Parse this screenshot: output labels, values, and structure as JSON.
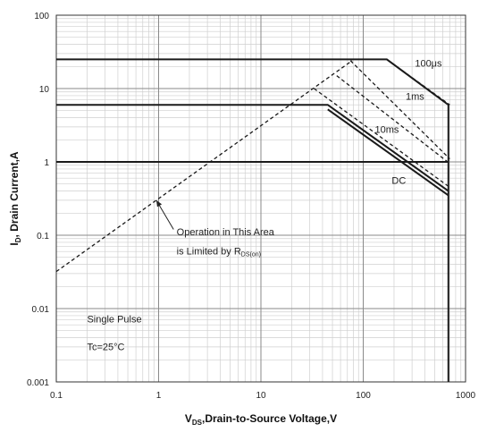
{
  "chart_data": {
    "type": "line",
    "title": "",
    "xlabel": {
      "main": "V",
      "sub": "DS",
      "rest": ",Drain-to-Source Voltage,V"
    },
    "ylabel": {
      "main": "I",
      "sub": "D",
      "rest": ", Drain Current,A"
    },
    "x_scale": "log",
    "y_scale": "log",
    "xlim": [
      0.1,
      1000
    ],
    "ylim": [
      0.001,
      100
    ],
    "grid": true,
    "x_ticks": [
      {
        "value": 0.1,
        "label": "0.1"
      },
      {
        "value": 1,
        "label": "1"
      },
      {
        "value": 10,
        "label": "10"
      },
      {
        "value": 100,
        "label": "100"
      },
      {
        "value": 1000,
        "label": "1000"
      }
    ],
    "y_ticks": [
      {
        "value": 0.001,
        "label": "0.001"
      },
      {
        "value": 0.01,
        "label": "0.01"
      },
      {
        "value": 0.1,
        "label": "0.1"
      },
      {
        "value": 1,
        "label": "1"
      },
      {
        "value": 10,
        "label": "10"
      },
      {
        "value": 100,
        "label": "100"
      }
    ],
    "series": [
      {
        "name": "100μs",
        "style": "solid",
        "points": [
          [
            0.1,
            25
          ],
          [
            170,
            25
          ],
          [
            680,
            6
          ],
          [
            680,
            0.001
          ]
        ]
      },
      {
        "name": "100μs",
        "style": "dashed",
        "points": [
          [
            170,
            25
          ],
          [
            700,
            6
          ]
        ]
      },
      {
        "name": "1ms",
        "style": "dashed",
        "points": [
          [
            75,
            24
          ],
          [
            700,
            1.1
          ]
        ]
      },
      {
        "name": "10ms",
        "style": "dashed",
        "points": [
          [
            0.1,
            0.032
          ],
          [
            78,
            24
          ]
        ]
      },
      {
        "name": "10ms",
        "style": "dashed",
        "points": [
          [
            55,
            15
          ],
          [
            700,
            0.95
          ]
        ]
      },
      {
        "name": "10ms",
        "style": "dashed",
        "points": [
          [
            33,
            10
          ],
          [
            700,
            0.45
          ]
        ]
      },
      {
        "name": "DC",
        "style": "solid",
        "points": [
          [
            0.1,
            6
          ],
          [
            45,
            6
          ],
          [
            680,
            0.4
          ]
        ]
      },
      {
        "name": "DC",
        "style": "solid",
        "points": [
          [
            0.1,
            1
          ],
          [
            680,
            1
          ]
        ]
      },
      {
        "name": "DC",
        "style": "solid",
        "points": [
          [
            45,
            5.2
          ],
          [
            680,
            0.35
          ]
        ]
      }
    ],
    "annotations": [
      {
        "text": "100μs",
        "x": 320,
        "y": 20
      },
      {
        "text": "1ms",
        "x": 260,
        "y": 7
      },
      {
        "text": "10ms",
        "x": 130,
        "y": 2.5
      },
      {
        "text": "DC",
        "x": 190,
        "y": 0.5
      },
      {
        "text": "Operation in This Area",
        "x": 1.5,
        "y": 0.1
      },
      {
        "text": "is Limited by R",
        "sub": "DS(on)",
        "x": 1.5,
        "y": 0.055
      },
      {
        "text": "Single Pulse",
        "x": 0.2,
        "y": 0.0065
      },
      {
        "text": "Tc=25°C",
        "x": 0.2,
        "y": 0.0027
      }
    ]
  }
}
